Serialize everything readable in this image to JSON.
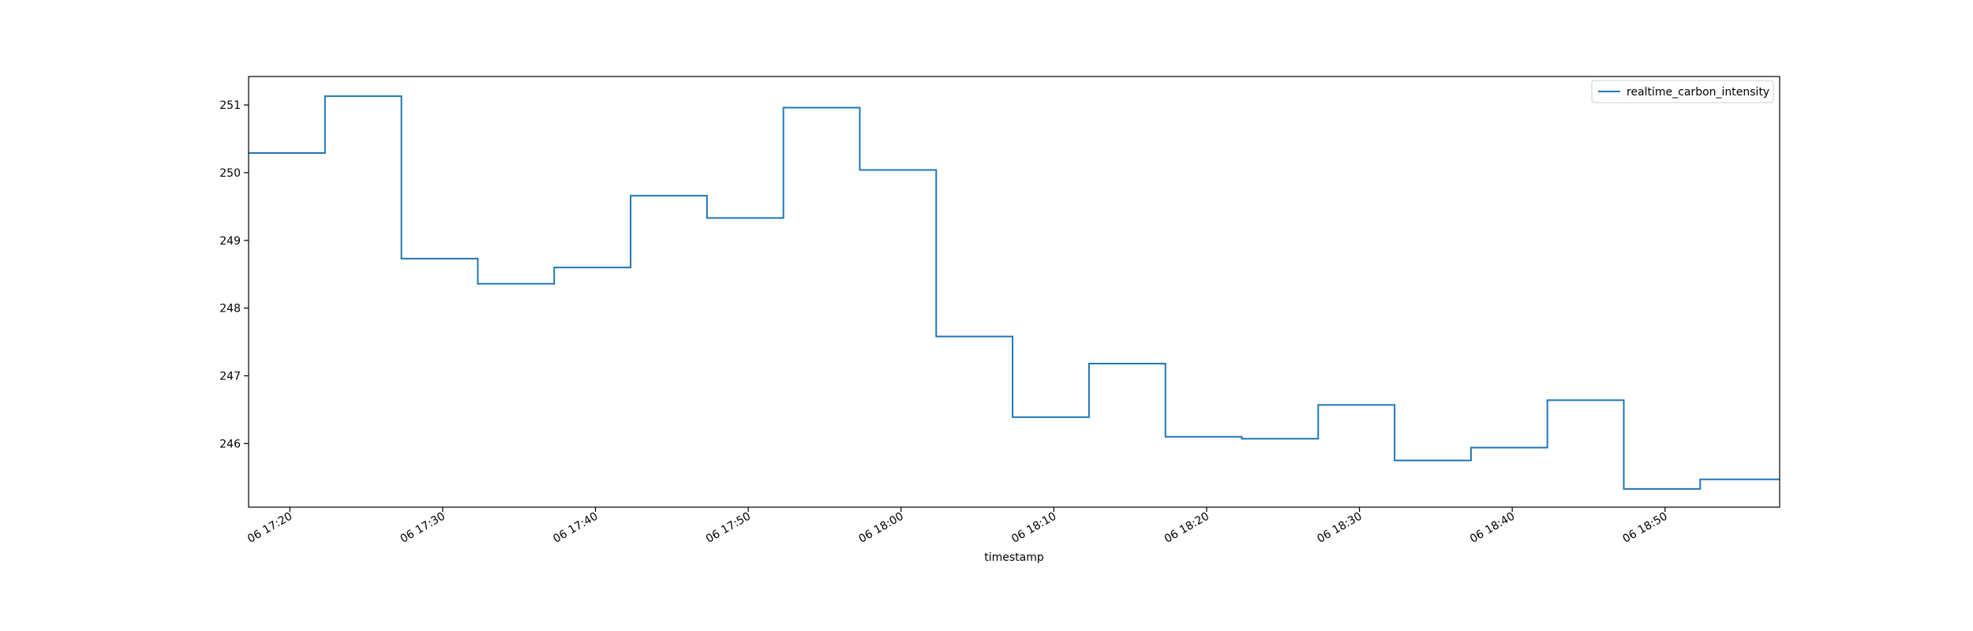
{
  "chart_data": {
    "type": "line",
    "title": "",
    "xlabel": "timestamp",
    "ylabel": "",
    "x_ticks": [
      "06 17:20",
      "06 17:30",
      "06 17:40",
      "06 17:50",
      "06 18:00",
      "06 18:10",
      "06 18:20",
      "06 18:30",
      "06 18:40",
      "06 18:50"
    ],
    "y_ticks": [
      "246",
      "247",
      "248",
      "249",
      "250",
      "251"
    ],
    "xlim": [
      "2024-01-06 17:17:18",
      "2024-01-06 18:57:30"
    ],
    "ylim": [
      245.06,
      251.42
    ],
    "grid": false,
    "legend_position": "top-right",
    "series": [
      {
        "name": "realtime_carbon_intensity",
        "color": "#1f77b4",
        "step": "post",
        "points": [
          {
            "x": "2024-01-06 17:17:18",
            "y": 250.29
          },
          {
            "x": "2024-01-06 17:22:18",
            "y": 251.13
          },
          {
            "x": "2024-01-06 17:27:18",
            "y": 248.73
          },
          {
            "x": "2024-01-06 17:32:18",
            "y": 248.36
          },
          {
            "x": "2024-01-06 17:37:18",
            "y": 248.6
          },
          {
            "x": "2024-01-06 17:42:18",
            "y": 249.66
          },
          {
            "x": "2024-01-06 17:47:18",
            "y": 249.33
          },
          {
            "x": "2024-01-06 17:52:18",
            "y": 250.96
          },
          {
            "x": "2024-01-06 17:57:18",
            "y": 250.04
          },
          {
            "x": "2024-01-06 18:02:18",
            "y": 247.58
          },
          {
            "x": "2024-01-06 18:07:18",
            "y": 246.39
          },
          {
            "x": "2024-01-06 18:12:18",
            "y": 247.18
          },
          {
            "x": "2024-01-06 18:17:18",
            "y": 246.1
          },
          {
            "x": "2024-01-06 18:22:18",
            "y": 246.07
          },
          {
            "x": "2024-01-06 18:27:18",
            "y": 246.57
          },
          {
            "x": "2024-01-06 18:32:18",
            "y": 245.75
          },
          {
            "x": "2024-01-06 18:37:18",
            "y": 245.94
          },
          {
            "x": "2024-01-06 18:42:18",
            "y": 246.64
          },
          {
            "x": "2024-01-06 18:47:18",
            "y": 245.33
          },
          {
            "x": "2024-01-06 18:52:18",
            "y": 245.47
          },
          {
            "x": "2024-01-06 18:57:30",
            "y": 245.47
          }
        ]
      }
    ]
  }
}
